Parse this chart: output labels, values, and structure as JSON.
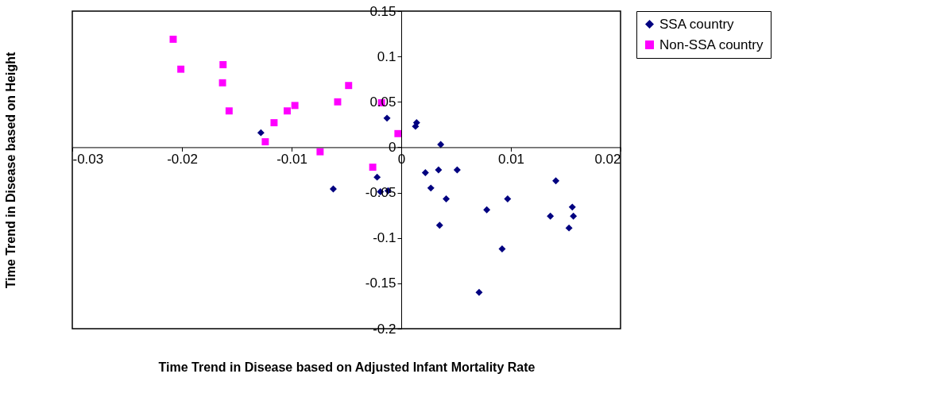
{
  "chart_data": {
    "type": "scatter",
    "xlabel": "Time Trend in Disease based on Adjusted Infant Mortality Rate",
    "ylabel": "Time Trend in Disease based on Height",
    "xlim": [
      -0.03,
      0.02
    ],
    "xticks": [
      -0.03,
      -0.02,
      -0.01,
      0,
      0.01,
      0.02
    ],
    "ylim": [
      -0.2,
      0.15
    ],
    "yticks": [
      -0.2,
      -0.15,
      -0.1,
      -0.05,
      0,
      0.05,
      0.1,
      0.15
    ],
    "grid": false,
    "legend": "right",
    "series": [
      {
        "name": "SSA country",
        "color": "#000080",
        "marker": "diamond",
        "x": [
          -0.0128,
          -0.0062,
          -0.0022,
          -0.0019,
          -0.0012,
          -0.0013,
          0.0014,
          0.0013,
          0.0036,
          0.0022,
          0.0034,
          0.0051,
          0.0027,
          0.0041,
          0.0035,
          0.0078,
          0.0097,
          0.0092,
          0.0071,
          0.0141,
          0.0136,
          0.0156,
          0.0157,
          0.0153
        ],
        "values": [
          0.016,
          -0.046,
          -0.033,
          -0.049,
          -0.048,
          0.032,
          0.027,
          0.023,
          0.003,
          -0.028,
          -0.025,
          -0.025,
          -0.045,
          -0.057,
          -0.086,
          -0.069,
          -0.057,
          -0.112,
          -0.16,
          -0.037,
          -0.076,
          -0.066,
          -0.076,
          -0.089
        ]
      },
      {
        "name": "Non-SSA country",
        "color": "#ff00ff",
        "marker": "square",
        "x": [
          -0.0208,
          -0.0201,
          -0.01625,
          -0.0163,
          -0.0157,
          -0.0116,
          -0.0124,
          -0.0104,
          -0.0097,
          -0.0074,
          -0.0058,
          -0.0048,
          -0.0018,
          -0.0003,
          -0.0026
        ],
        "values": [
          0.119,
          0.086,
          0.091,
          0.071,
          0.04,
          0.027,
          0.006,
          0.04,
          0.046,
          -0.005,
          0.05,
          0.068,
          0.049,
          0.015,
          -0.022
        ]
      }
    ]
  }
}
